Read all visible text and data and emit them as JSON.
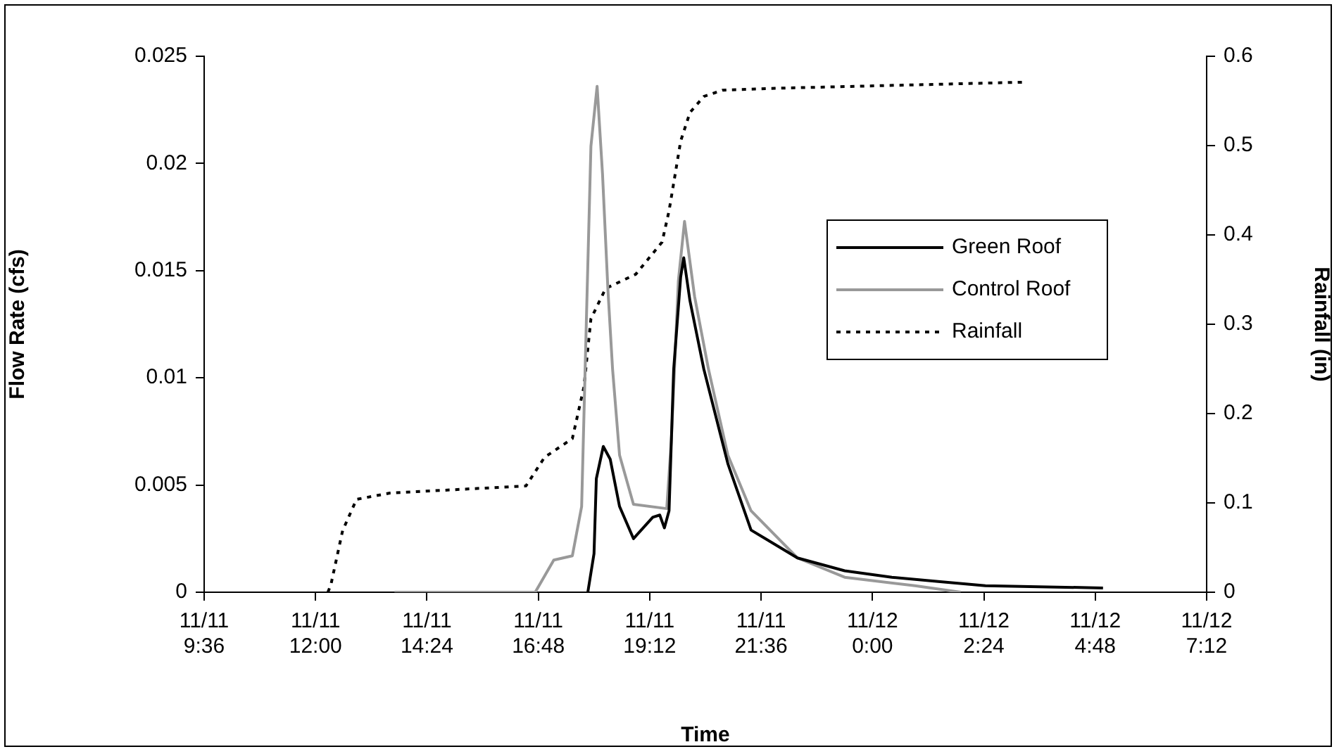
{
  "chart_data": {
    "type": "line",
    "xlabel": "Time",
    "ylabel": "Flow Rate (cfs)",
    "y2label": "Rainfall (in)",
    "xlim": [
      "--11-11T09:36",
      "--11-12T07:12"
    ],
    "xticks": [
      {
        "value": "--11-11T09:36",
        "label": "11/11 9:36"
      },
      {
        "value": "--11-11T12:00",
        "label": "11/11 12:00"
      },
      {
        "value": "--11-11T14:24",
        "label": "11/11 14:24"
      },
      {
        "value": "--11-11T16:48",
        "label": "11/11 16:48"
      },
      {
        "value": "--11-11T19:12",
        "label": "11/11 19:12"
      },
      {
        "value": "--11-11T21:36",
        "label": "11/11 21:36"
      },
      {
        "value": "--11-12T00:00",
        "label": "11/12 0:00"
      },
      {
        "value": "--11-12T02:24",
        "label": "11/12 2:24"
      },
      {
        "value": "--11-12T04:48",
        "label": "11/12 4:48"
      },
      {
        "value": "--11-12T07:12",
        "label": "11/12 7:12"
      }
    ],
    "ylim": [
      0,
      0.025
    ],
    "yticks": [
      0,
      0.005,
      0.01,
      0.015,
      0.02,
      0.025
    ],
    "y2lim": [
      0,
      0.6
    ],
    "y2ticks": [
      0,
      0.1,
      0.2,
      0.3,
      0.4,
      0.5,
      0.6
    ],
    "grid": false,
    "legend": "right",
    "marker": "none",
    "series": [
      {
        "name": "Green Roof",
        "color": "#000000",
        "line_style": "solid",
        "x": [
          "--11-11T17:52",
          "--11-11T18:00",
          "--11-11T18:03",
          "--11-11T18:12",
          "--11-11T18:21",
          "--11-11T18:33",
          "--11-11T18:51",
          "--11-11T19:16",
          "--11-11T19:25",
          "--11-11T19:31",
          "--11-11T19:37",
          "--11-11T19:43",
          "--11-11T19:52",
          "--11-11T19:56",
          "--11-11T20:04",
          "--11-11T20:22",
          "--11-11T20:53",
          "--11-11T21:23",
          "--11-11T22:23",
          "--11-11T23:24",
          "--11-12T00:25",
          "--11-12T01:25",
          "--11-12T02:26",
          "--11-12T04:58"
        ],
        "values": [
          0,
          0.0018,
          0.0053,
          0.0068,
          0.0062,
          0.004,
          0.0025,
          0.0035,
          0.0036,
          0.003,
          0.0038,
          0.0104,
          0.0147,
          0.0156,
          0.0136,
          0.0104,
          0.006,
          0.0029,
          0.0016,
          0.001,
          0.0007,
          0.0005,
          0.0003,
          0.0002
        ]
      },
      {
        "name": "Control Roof",
        "color": "#999999",
        "line_style": "solid",
        "x": [
          "--11-11T13:42",
          "--11-11T16:44",
          "--11-11T17:08",
          "--11-11T17:32",
          "--11-11T17:44",
          "--11-11T17:50",
          "--11-11T17:56",
          "--11-11T18:04",
          "--11-11T18:11",
          "--11-11T18:18",
          "--11-11T18:24",
          "--11-11T18:33",
          "--11-11T18:51",
          "--11-11T19:34",
          "--11-11T19:40",
          "--11-11T19:49",
          "--11-11T19:57",
          "--11-11T20:10",
          "--11-11T20:28",
          "--11-11T20:53",
          "--11-11T21:23",
          "--11-11T22:23",
          "--11-11T23:24",
          "--11-12T00:55",
          "--11-12T01:54"
        ],
        "values": [
          0,
          0,
          0.0015,
          0.0017,
          0.004,
          0.0125,
          0.0208,
          0.0236,
          0.0195,
          0.0141,
          0.0104,
          0.0064,
          0.0041,
          0.0039,
          0.0071,
          0.0145,
          0.0173,
          0.0138,
          0.0104,
          0.0064,
          0.0038,
          0.0016,
          0.0007,
          0.0003,
          0
        ]
      },
      {
        "name": "Rainfall",
        "color": "#000000",
        "line_style": "dotted",
        "axis": "y2",
        "x": [
          "--11-11T12:16",
          "--11-11T12:20",
          "--11-11T12:35",
          "--11-11T12:53",
          "--11-11T13:36",
          "--11-11T16:32",
          "--11-11T16:56",
          "--11-11T17:32",
          "--11-11T17:47",
          "--11-11T17:56",
          "--11-11T18:15",
          "--11-11T18:54",
          "--11-11T19:28",
          "--11-11T19:37",
          "--11-11T19:43",
          "--11-11T19:52",
          "--11-11T20:04",
          "--11-11T20:22",
          "--11-11T20:46",
          "--11-11T21:47",
          "--11-12T03:15"
        ],
        "values": [
          0,
          0.009,
          0.069,
          0.104,
          0.111,
          0.119,
          0.151,
          0.172,
          0.23,
          0.306,
          0.34,
          0.356,
          0.392,
          0.427,
          0.458,
          0.505,
          0.537,
          0.555,
          0.562,
          0.564,
          0.571
        ]
      }
    ]
  }
}
